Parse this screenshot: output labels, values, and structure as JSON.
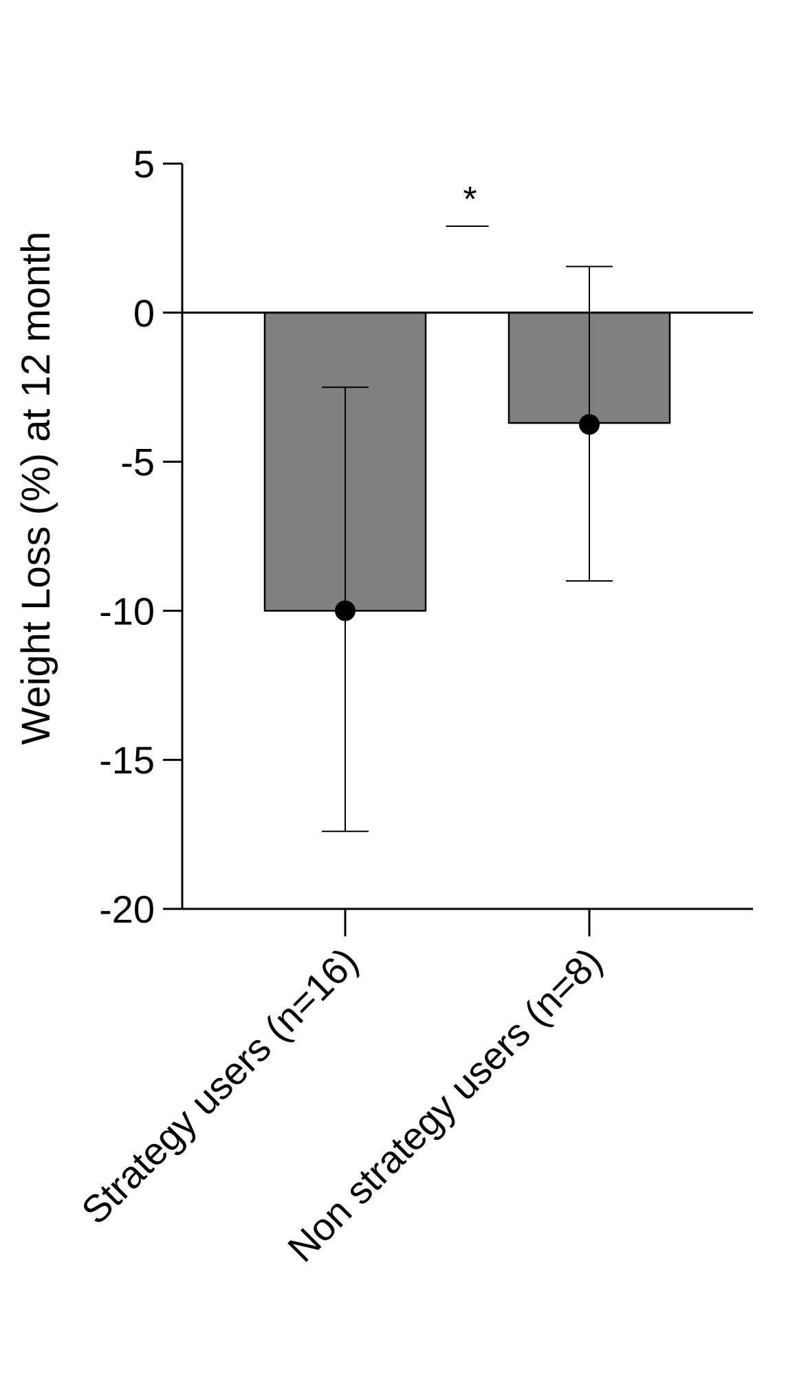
{
  "chart_data": {
    "type": "bar",
    "title": "",
    "xlabel": "",
    "ylabel": "Weight Loss (%) at 12 month",
    "categories": [
      "Strategy users (n=16)",
      "Non strategy users (n=8)"
    ],
    "series": [
      {
        "values": [
          -10.0,
          -3.7
        ],
        "error_upper": [
          -2.5,
          1.55
        ],
        "error_lower": [
          -17.4,
          -9.0
        ],
        "points": [
          -10.0,
          -3.75
        ]
      }
    ],
    "ylim": [
      -20,
      5
    ],
    "yticks": [
      "5",
      "0",
      "-5",
      "-10",
      "-15",
      "-20"
    ],
    "annotation": {
      "text": "*",
      "between": [
        0,
        1
      ]
    },
    "grid": false,
    "legend": "none",
    "colors": {
      "bar_fill": "#808080",
      "bar_stroke": "#000000",
      "point": "#000000",
      "axis": "#000000"
    }
  }
}
